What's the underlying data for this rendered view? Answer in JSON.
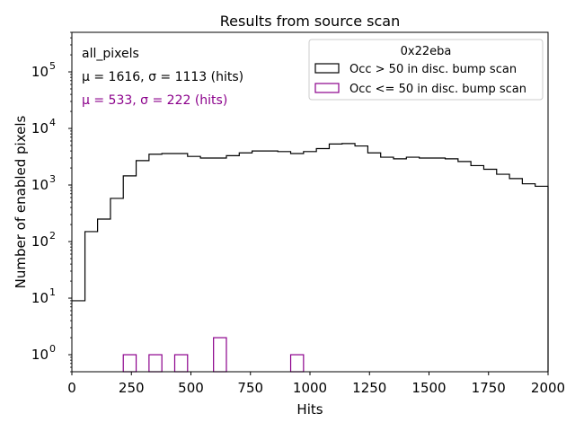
{
  "chart_data": {
    "type": "histogram",
    "title": "Results from source scan",
    "xlabel": "Hits",
    "ylabel": "Number of enabled pixels",
    "y_scale": "log",
    "xlim": [
      0,
      2000
    ],
    "ylim": [
      0.5,
      500000
    ],
    "x_ticks": [
      0,
      250,
      500,
      750,
      1000,
      1250,
      1500,
      1750,
      2000
    ],
    "y_tick_exponents": [
      0,
      1,
      2,
      3,
      4,
      5
    ],
    "annotations": {
      "label": "all_pixels",
      "stats_main": "μ = 1616, σ = 1113 (hits)",
      "stats_low": "μ = 533, σ = 222 (hits)"
    },
    "colors": {
      "main": "#000000",
      "low": "#8b008b"
    },
    "legend": {
      "title": "0x22eba",
      "placement": "top-right",
      "entries": [
        "Occ > 50 in disc. bump scan",
        "Occ <= 50 in disc. bump scan"
      ]
    },
    "series": [
      {
        "name": "Occ > 50 in disc. bump scan",
        "bin_edges": [
          0,
          55,
          108,
          162,
          216,
          270,
          324,
          378,
          432,
          486,
          540,
          595,
          649,
          703,
          757,
          811,
          865,
          919,
          973,
          1027,
          1081,
          1135,
          1189,
          1243,
          1297,
          1351,
          1405,
          1459,
          1514,
          1568,
          1622,
          1676,
          1730,
          1784,
          1838,
          1892,
          1946
        ],
        "counts": [
          9,
          150,
          250,
          580,
          1450,
          2700,
          3500,
          3600,
          3600,
          3200,
          3000,
          3000,
          3300,
          3700,
          4000,
          4000,
          3900,
          3600,
          3900,
          4400,
          5300,
          5400,
          4900,
          3700,
          3100,
          2900,
          3100,
          3000,
          3000,
          2900,
          2600,
          2200,
          1900,
          1550,
          1300,
          1050,
          950
        ]
      },
      {
        "name": "Occ <= 50 in disc. bump scan",
        "bins": [
          {
            "x0": 216,
            "x1": 270,
            "count": 1
          },
          {
            "x0": 324,
            "x1": 378,
            "count": 1
          },
          {
            "x0": 432,
            "x1": 486,
            "count": 1
          },
          {
            "x0": 595,
            "x1": 649,
            "count": 2
          },
          {
            "x0": 919,
            "x1": 973,
            "count": 1
          }
        ]
      }
    ]
  }
}
